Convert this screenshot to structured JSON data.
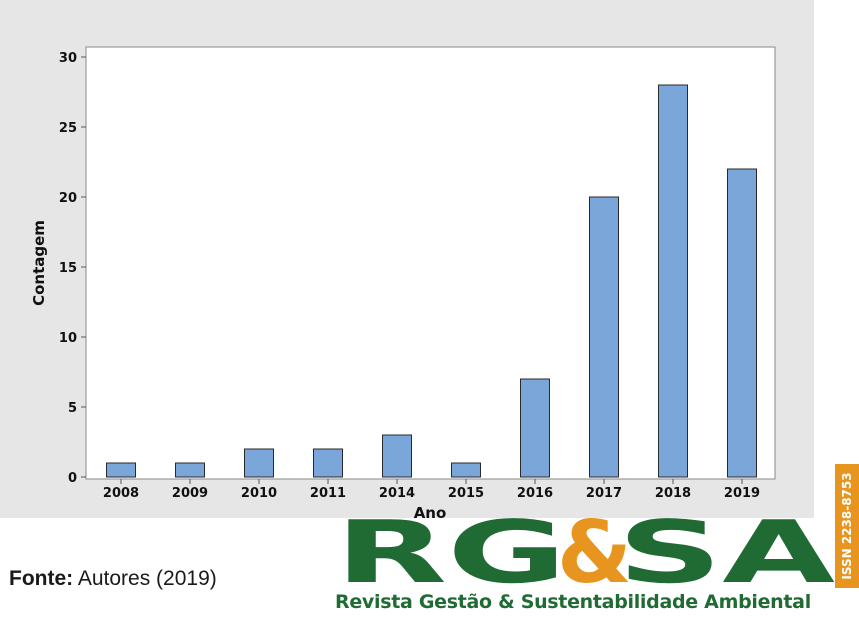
{
  "chart_data": {
    "type": "bar",
    "title": "",
    "xlabel": "Ano",
    "ylabel": "Contagem",
    "categories": [
      "2008",
      "2009",
      "2010",
      "2011",
      "2014",
      "2015",
      "2016",
      "2017",
      "2018",
      "2019"
    ],
    "values": [
      1,
      1,
      2,
      2,
      3,
      1,
      7,
      20,
      28,
      22
    ],
    "ylim": [
      0,
      30
    ],
    "yticks": [
      "0",
      "5",
      "10",
      "15",
      "20",
      "25",
      "30"
    ],
    "grid": false,
    "bar_color": "#7ba6d9",
    "bar_edge_color": "#2a2a2a",
    "background_color": "#e6e6e6"
  },
  "caption": {
    "label": "Fonte:",
    "text": " Autores (2019)"
  },
  "logo": {
    "letters": "RG&SA",
    "tagline": "Revista Gestão & Sustentabilidade Ambiental",
    "issn": "ISSN 2238-8753",
    "green": "#1f6b33",
    "orange": "#e8951f"
  }
}
